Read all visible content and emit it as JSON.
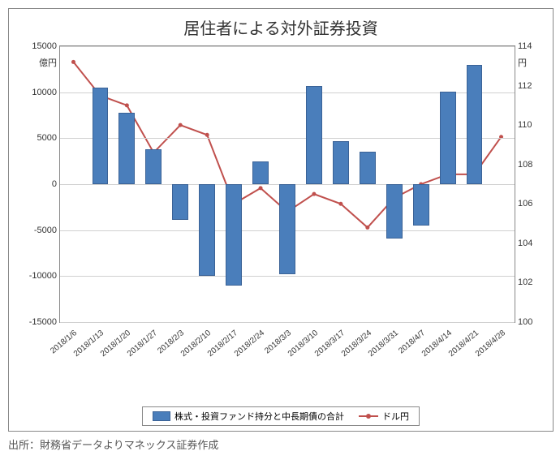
{
  "chart": {
    "title": "居住者による対外証券投資",
    "left_axis": {
      "unit": "億円",
      "min": -15000,
      "max": 15000,
      "step": 5000,
      "ticks": [
        -15000,
        -10000,
        -5000,
        0,
        5000,
        10000,
        15000
      ]
    },
    "right_axis": {
      "unit": "円",
      "min": 100,
      "max": 114,
      "step": 2,
      "ticks": [
        100,
        102,
        104,
        106,
        108,
        110,
        112,
        114
      ]
    },
    "categories": [
      "2018/1/6",
      "2018/1/13",
      "2018/1/20",
      "2018/1/27",
      "2018/2/3",
      "2018/2/10",
      "2018/2/17",
      "2018/2/24",
      "2018/3/3",
      "2018/3/10",
      "2018/3/17",
      "2018/3/24",
      "2018/3/31",
      "2018/4/7",
      "2018/4/14",
      "2018/4/21",
      "2018/4/28"
    ],
    "bars": {
      "label": "株式・投資ファンド持分と中長期債の合計",
      "color": "#4a7ebb",
      "border_color": "#3a6296",
      "values": [
        null,
        10500,
        7800,
        3800,
        -3900,
        -10000,
        -11000,
        2500,
        -9800,
        10700,
        4700,
        3500,
        -5900,
        -4500,
        10100,
        13000,
        null
      ],
      "bar_width_ratio": 0.6
    },
    "line": {
      "label": "ドル円",
      "color": "#c0504d",
      "marker": "circle",
      "marker_size": 5,
      "line_width": 2,
      "values": [
        113.2,
        111.5,
        111.0,
        108.6,
        110.0,
        109.5,
        106.0,
        106.8,
        105.6,
        106.5,
        106.0,
        104.8,
        106.3,
        107.0,
        107.5,
        107.5,
        109.4
      ]
    },
    "background_color": "#ffffff",
    "grid_color": "#d0d0d0",
    "plot_border_color": "#888888"
  },
  "source": "出所：財務省データよりマネックス証券作成"
}
